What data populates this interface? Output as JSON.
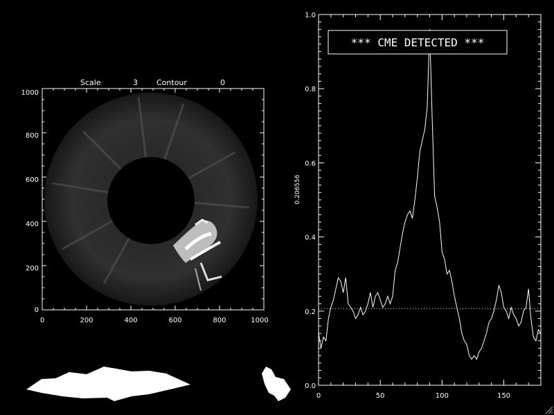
{
  "image_panel": {
    "header": {
      "scale_label": "Scale",
      "scale_value": "3",
      "contour_label": "Contour",
      "contour_value": "0"
    },
    "x_ticks": [
      "0",
      "200",
      "400",
      "600",
      "800",
      "1000"
    ],
    "y_ticks": [
      "0",
      "200",
      "400",
      "600",
      "800",
      "1000"
    ]
  },
  "chart_data": {
    "type": "line",
    "title": "",
    "xlabel": "",
    "ylabel": "0.206556",
    "xlim": [
      0,
      180
    ],
    "ylim": [
      0.0,
      1.0
    ],
    "x_ticks": [
      "0",
      "50",
      "100",
      "150"
    ],
    "y_ticks": [
      "0.0",
      "0.2",
      "0.4",
      "0.6",
      "0.8",
      "1.0"
    ],
    "threshold": 0.206556,
    "annotation": "*** CME DETECTED ***",
    "series": [
      {
        "x": [
          0,
          2,
          4,
          6,
          8,
          10,
          12,
          14,
          16,
          18,
          20,
          22,
          24,
          26,
          28,
          30,
          32,
          34,
          36,
          38,
          40,
          42,
          44,
          46,
          48,
          50,
          52,
          54,
          56,
          58,
          60,
          62,
          64,
          66,
          68,
          70,
          72,
          74,
          76,
          78,
          80,
          82,
          84,
          86,
          88,
          90,
          92,
          94,
          96,
          98,
          100,
          102,
          104,
          106,
          108,
          110,
          112,
          114,
          116,
          118,
          120,
          122,
          124,
          126,
          128,
          130,
          132,
          134,
          136,
          138,
          140,
          142,
          144,
          146,
          148,
          150,
          152,
          154,
          156,
          158,
          160,
          162,
          164,
          166,
          168,
          170,
          172,
          174,
          176,
          178,
          180
        ],
        "y": [
          0.14,
          0.1,
          0.13,
          0.12,
          0.18,
          0.21,
          0.23,
          0.26,
          0.29,
          0.28,
          0.25,
          0.29,
          0.22,
          0.21,
          0.2,
          0.18,
          0.19,
          0.21,
          0.19,
          0.2,
          0.22,
          0.25,
          0.21,
          0.24,
          0.25,
          0.23,
          0.21,
          0.22,
          0.24,
          0.22,
          0.24,
          0.31,
          0.33,
          0.37,
          0.41,
          0.44,
          0.46,
          0.47,
          0.45,
          0.5,
          0.56,
          0.63,
          0.66,
          0.69,
          0.75,
          0.96,
          0.72,
          0.51,
          0.48,
          0.44,
          0.36,
          0.34,
          0.3,
          0.31,
          0.28,
          0.24,
          0.21,
          0.18,
          0.14,
          0.12,
          0.11,
          0.08,
          0.07,
          0.08,
          0.07,
          0.09,
          0.1,
          0.12,
          0.14,
          0.17,
          0.18,
          0.2,
          0.23,
          0.27,
          0.25,
          0.21,
          0.2,
          0.18,
          0.21,
          0.19,
          0.18,
          0.16,
          0.17,
          0.2,
          0.21,
          0.26,
          0.18,
          0.13,
          0.12,
          0.15,
          0.14
        ]
      }
    ]
  }
}
